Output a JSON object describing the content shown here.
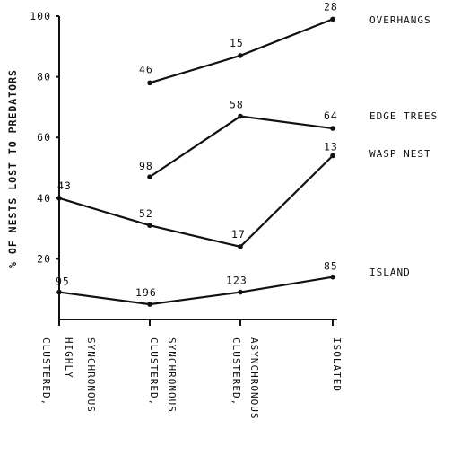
{
  "chart_data": {
    "type": "line",
    "ylabel": "% OF NESTS LOST TO PREDATORS",
    "xlabel": "",
    "ylim": [
      0,
      100
    ],
    "y_ticks": [
      20,
      40,
      60,
      80,
      100
    ],
    "grid": false,
    "legend": "series labels at right end of lines",
    "categories": [
      [
        "CLUSTERED,",
        "HIGHLY",
        "SYNCHRONOUS"
      ],
      [
        "CLUSTERED,",
        "SYNCHRONOUS"
      ],
      [
        "CLUSTERED,",
        "ASYNCHRONOUS"
      ],
      [
        "ISOLATED"
      ]
    ],
    "series": [
      {
        "name": "OVERHANGS",
        "values": [
          null,
          78,
          87,
          99
        ],
        "labels": [
          null,
          "46",
          "15",
          "28"
        ]
      },
      {
        "name": "EDGE TREES",
        "values": [
          null,
          47,
          67,
          63
        ],
        "labels": [
          null,
          "98",
          "58",
          "64"
        ]
      },
      {
        "name": "WASP NEST",
        "values": [
          40,
          31,
          24,
          54
        ],
        "labels": [
          "43",
          "52",
          "17",
          "13"
        ]
      },
      {
        "name": "ISLAND",
        "values": [
          9,
          5,
          9,
          14
        ],
        "labels": [
          "95",
          "196",
          "123",
          "85"
        ]
      }
    ]
  }
}
